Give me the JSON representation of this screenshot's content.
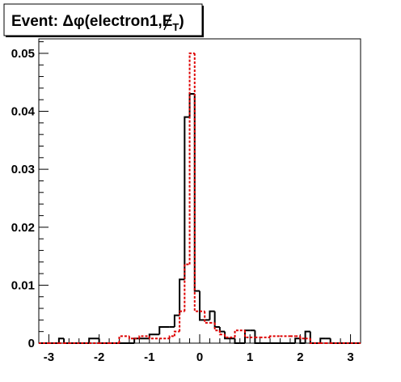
{
  "chart_data": {
    "type": "step",
    "title": "Event: Δφ(electron1,",
    "title_met_symbol": "E",
    "title_met_subscript": "T",
    "title_suffix": ")",
    "xlabel": "",
    "ylabel": "",
    "xlim": [
      -3.2,
      3.2
    ],
    "ylim": [
      0,
      0.0525
    ],
    "x_ticks": [
      -3,
      -2,
      -1,
      0,
      1,
      2,
      3
    ],
    "x_tick_labels": [
      "-3",
      "-2",
      "-1",
      "0",
      "1",
      "2",
      "3"
    ],
    "y_ticks": [
      0,
      0.01,
      0.02,
      0.03,
      0.04,
      0.05
    ],
    "y_tick_labels": [
      "0",
      "0.01",
      "0.02",
      "0.03",
      "0.04",
      "0.05"
    ],
    "bin_edges": [
      -3.2,
      -3.0,
      -2.8,
      -2.7,
      -2.6,
      -2.2,
      -2.0,
      -1.8,
      -1.6,
      -1.4,
      -1.3,
      -1.2,
      -1.0,
      -0.8,
      -0.6,
      -0.5,
      -0.4,
      -0.3,
      -0.2,
      -0.1,
      0.0,
      0.1,
      0.2,
      0.3,
      0.4,
      0.5,
      0.6,
      0.7,
      0.8,
      0.9,
      1.0,
      1.1,
      1.2,
      1.4,
      1.6,
      1.8,
      1.9,
      2.0,
      2.1,
      2.2,
      2.4,
      2.5,
      2.6,
      3.2
    ],
    "series": [
      {
        "color": "#000000",
        "line_style": "solid",
        "values": [
          0,
          0,
          0.0008,
          0,
          0,
          0.0008,
          0,
          0,
          0,
          0,
          0.0008,
          0.0008,
          0.0015,
          0.0028,
          0.0028,
          0.0048,
          0.011,
          0.039,
          0.043,
          0.009,
          0.004,
          0.004,
          0.0055,
          0.0028,
          0.002,
          0.0008,
          0.0008,
          0,
          0,
          0.0022,
          0.0022,
          0,
          0,
          0,
          0,
          0,
          0.0008,
          0,
          0.002,
          0,
          0.0008,
          0.0008,
          0
        ]
      },
      {
        "color": "#dd0000",
        "line_style": "dotted",
        "values": [
          0,
          0,
          0,
          0,
          0,
          0,
          0,
          0,
          0.0012,
          0.0008,
          0.0008,
          0.0012,
          0.0008,
          0.0008,
          0.0012,
          0.002,
          0.0055,
          0.0136,
          0.05,
          0.0055,
          0.0055,
          0.0035,
          0.0035,
          0.0022,
          0.0015,
          0.001,
          0.001,
          0.0022,
          0.0022,
          0.001,
          0.001,
          0.001,
          0.001,
          0.0012,
          0.0012,
          0.0012,
          0.0012,
          0.0008,
          0.0008,
          0,
          0,
          0,
          0
        ]
      }
    ]
  }
}
